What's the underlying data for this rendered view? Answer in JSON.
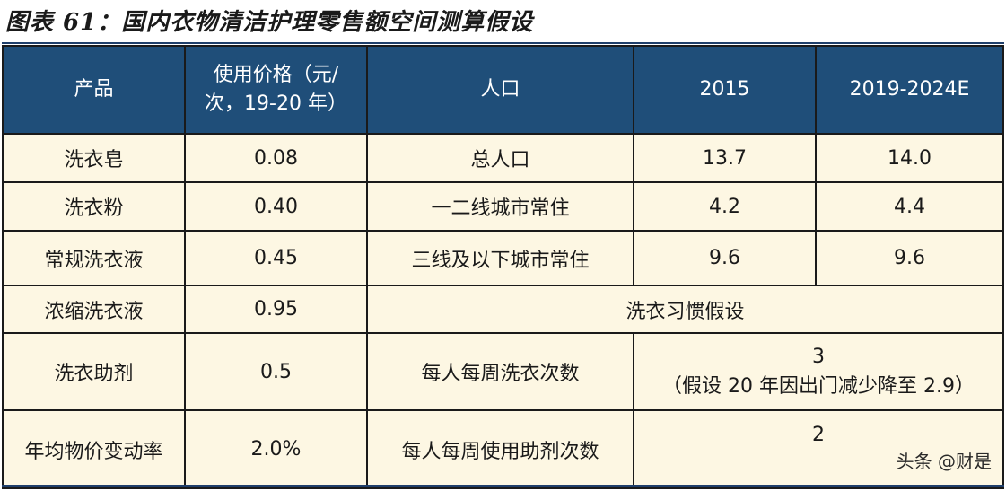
{
  "title": "图表 61：国内衣物清洁护理零售额空间测算假设",
  "headers": {
    "product": "产品",
    "price_line1": "使用价格（元/",
    "price_line2": "次，19-20 年）",
    "population": "人口",
    "year_2015": "2015",
    "year_forecast": "2019-2024E"
  },
  "rows": [
    {
      "product": "洗衣皂",
      "price": "0.08",
      "population_item": "总人口",
      "v2015": "13.7",
      "vforecast": "14.0"
    },
    {
      "product": "洗衣粉",
      "price": "0.40",
      "population_item": "一二线城市常住",
      "v2015": "4.2",
      "vforecast": "4.4"
    },
    {
      "product": "常规洗衣液",
      "price": "0.45",
      "population_item": "三线及以下城市常住",
      "v2015": "9.6",
      "vforecast": "9.6"
    },
    {
      "product": "浓缩洗衣液",
      "price": "0.95",
      "habit_header": "洗衣习惯假设"
    },
    {
      "product": "洗衣助剂",
      "price": "0.5",
      "habit_item": "每人每周洗衣次数",
      "habit_value_line1": "3",
      "habit_value_line2": "（假设 20 年因出门减少降至 2.9）"
    },
    {
      "product": "年均物价变动率",
      "price": "2.0%",
      "habit_item": "每人每周使用助剂次数",
      "habit_value_line1": "2"
    }
  ],
  "watermark": "头条 @财是"
}
